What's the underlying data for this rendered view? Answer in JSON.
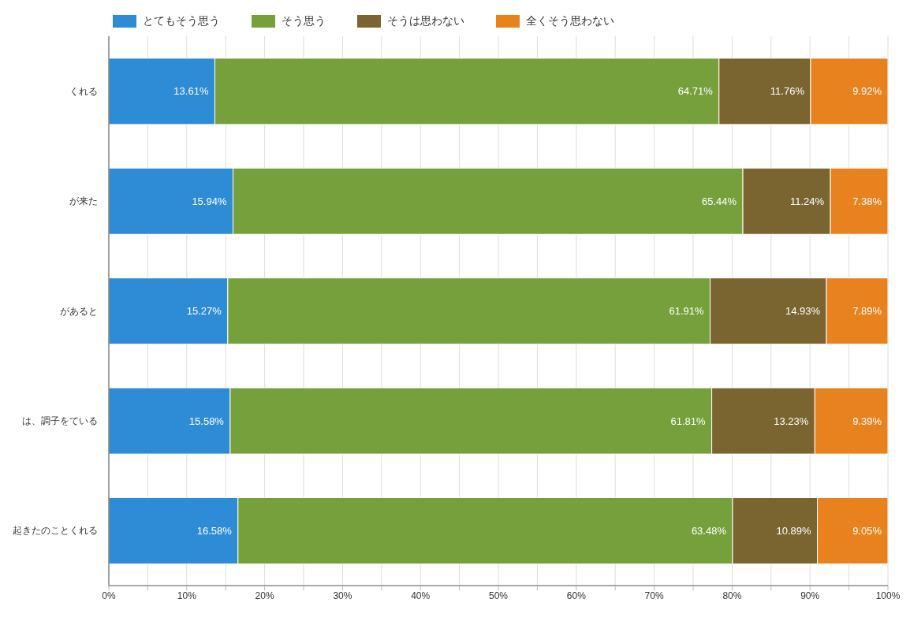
{
  "chart_data": {
    "type": "bar",
    "orientation": "horizontal",
    "stacked": true,
    "categories": [
      "くれる",
      "が来た",
      "があると",
      "は、調子をている",
      "起きたのことくれる"
    ],
    "series": [
      {
        "name": "とてもそう思う",
        "color": "#2e8bd6",
        "values": [
          13.61,
          15.94,
          15.27,
          15.58,
          16.58
        ],
        "value_labels": [
          "13.61%",
          "15.94%",
          "15.27%",
          "15.58%",
          "16.58%"
        ]
      },
      {
        "name": "そう思う",
        "color": "#76a03c",
        "values": [
          64.71,
          65.44,
          61.91,
          61.81,
          63.48
        ],
        "value_labels": [
          "64.71%",
          "65.44%",
          "61.91%",
          "61.81%",
          "63.48%"
        ]
      },
      {
        "name": "そうは思わない",
        "color": "#7a6530",
        "values": [
          11.76,
          11.24,
          14.93,
          13.23,
          10.89
        ],
        "value_labels": [
          "11.76%",
          "11.24%",
          "14.93%",
          "13.23%",
          "10.89%"
        ]
      },
      {
        "name": "全くそう思わない",
        "color": "#e8821e",
        "values": [
          9.92,
          7.38,
          7.89,
          9.39,
          9.05
        ],
        "value_labels": [
          "9.92%",
          "7.38%",
          "7.89%",
          "9.39%",
          "9.05%"
        ]
      }
    ],
    "xlim": [
      0,
      100
    ],
    "xticks": [
      {
        "value": 0,
        "label": "0%"
      },
      {
        "value": 5,
        "label": null
      },
      {
        "value": 10,
        "label": "10%"
      },
      {
        "value": 15,
        "label": null
      },
      {
        "value": 20,
        "label": "20%"
      },
      {
        "value": 25,
        "label": null
      },
      {
        "value": 30,
        "label": "30%"
      },
      {
        "value": 35,
        "label": null
      },
      {
        "value": 40,
        "label": "40%"
      },
      {
        "value": 45,
        "label": null
      },
      {
        "value": 50,
        "label": "50%"
      },
      {
        "value": 55,
        "label": null
      },
      {
        "value": 60,
        "label": "60%"
      },
      {
        "value": 65,
        "label": null
      },
      {
        "value": 70,
        "label": "70%"
      },
      {
        "value": 75,
        "label": null
      },
      {
        "value": 80,
        "label": "80%"
      },
      {
        "value": 85,
        "label": null
      },
      {
        "value": 90,
        "label": "90%"
      },
      {
        "value": 95,
        "label": null
      },
      {
        "value": 100,
        "label": "100%"
      }
    ],
    "grid": "x",
    "legend": "top left"
  }
}
